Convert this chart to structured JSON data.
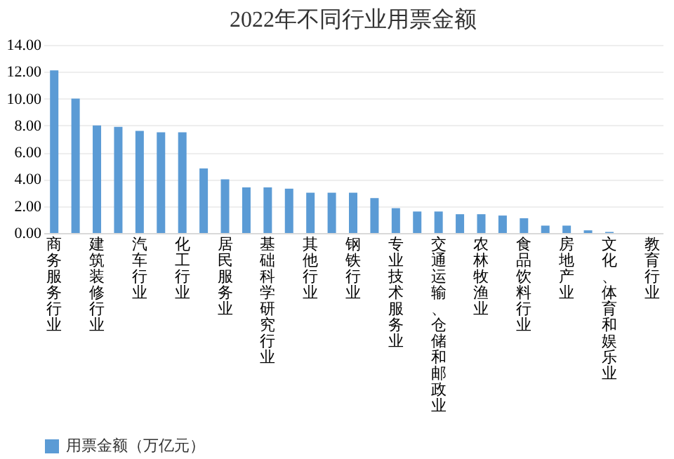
{
  "chart_data": {
    "type": "bar",
    "title": "2022年不同行业用票金额",
    "categories": [
      "商务服务行业",
      null,
      "建筑装修行业",
      null,
      "汽车行业",
      null,
      "化工行业",
      null,
      "居民服务业",
      null,
      "基础科学研究行业",
      null,
      "其他行业",
      null,
      "钢铁行业",
      null,
      "专业技术服务业",
      null,
      "交通运输、仓储和邮政业",
      null,
      "农林牧渔业",
      null,
      "食品饮料行业",
      null,
      "房地产业",
      null,
      "文化、体育和娱乐业",
      null,
      "教育行业"
    ],
    "series": [
      {
        "name": "用票金额（万亿元）",
        "color": "#5b9bd5",
        "values": [
          12.1,
          10.0,
          8.0,
          7.9,
          7.6,
          7.5,
          7.5,
          4.8,
          4.0,
          3.4,
          3.4,
          3.3,
          3.0,
          3.0,
          3.0,
          2.6,
          1.85,
          1.6,
          1.6,
          1.4,
          1.4,
          1.3,
          1.1,
          0.55,
          0.55,
          0.2,
          0.08,
          0,
          0
        ]
      }
    ],
    "ylim": [
      0,
      14
    ],
    "yticks": [
      {
        "value": 0,
        "label": "0.00"
      },
      {
        "value": 2,
        "label": "2.00"
      },
      {
        "value": 4,
        "label": "4.00"
      },
      {
        "value": 6,
        "label": "6.00"
      },
      {
        "value": 8,
        "label": "8.00"
      },
      {
        "value": 10,
        "label": "10.00"
      },
      {
        "value": 12,
        "label": "12.00"
      },
      {
        "value": 14,
        "label": "14.00"
      }
    ],
    "grid": "y",
    "legend": "bottom"
  }
}
